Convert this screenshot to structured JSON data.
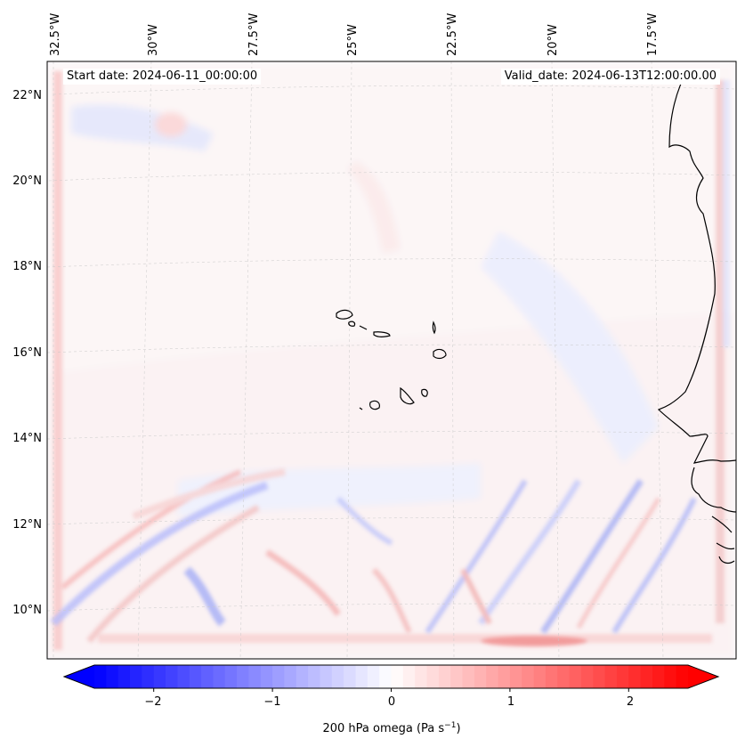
{
  "header": {
    "start_date": "Start date: 2024-06-11_00:00:00",
    "valid_date": "Valid_date: 2024-06-13T12:00:00.00"
  },
  "map": {
    "longitude_labels": [
      "32.5°W",
      "30°W",
      "27.5°W",
      "25°W",
      "22.5°W",
      "20°W",
      "17.5°W"
    ],
    "latitude_labels": [
      "22°N",
      "20°N",
      "18°N",
      "16°N",
      "14°N",
      "12°N",
      "10°N"
    ],
    "colormap": {
      "negative": "#0000ff",
      "zero": "#ffffff",
      "positive": "#ff0000"
    }
  },
  "colorbar": {
    "tick_labels": [
      "−2",
      "−1",
      "0",
      "1",
      "2"
    ],
    "tick_values": [
      -2,
      -1,
      0,
      1,
      2
    ],
    "range": [
      -2.5,
      2.5
    ],
    "label": "200 hPa omega (Pa s",
    "label_sup": "−1",
    "label_end": ")"
  }
}
